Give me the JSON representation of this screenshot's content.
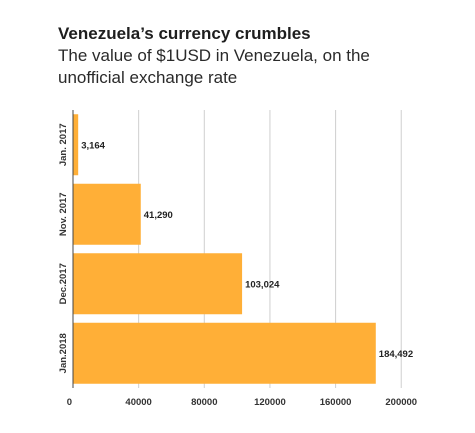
{
  "title": "Venezuela’s currency crumbles",
  "subtitle": "The value of $1USD in Venezuela, on the unofficial exchange rate",
  "colors": {
    "bar": "#FFAF37",
    "grid": "#cfcfcf",
    "axis": "#444444"
  },
  "chart_data": {
    "type": "bar",
    "orientation": "horizontal",
    "categories": [
      "Jan. 2017",
      "Nov. 2017",
      "Dec.2017",
      "Jan.2018"
    ],
    "values": [
      3164,
      41290,
      103024,
      184492
    ],
    "data_labels": [
      "3,164",
      "41,290",
      "103,024",
      "184,492"
    ],
    "xlim": [
      0,
      210000
    ],
    "xticks": [
      0,
      40000,
      80000,
      120000,
      160000,
      200000
    ],
    "xtick_labels": [
      "0",
      "40000",
      "80000",
      "120000",
      "160000",
      "200000"
    ],
    "grid": true,
    "legend": "none"
  }
}
